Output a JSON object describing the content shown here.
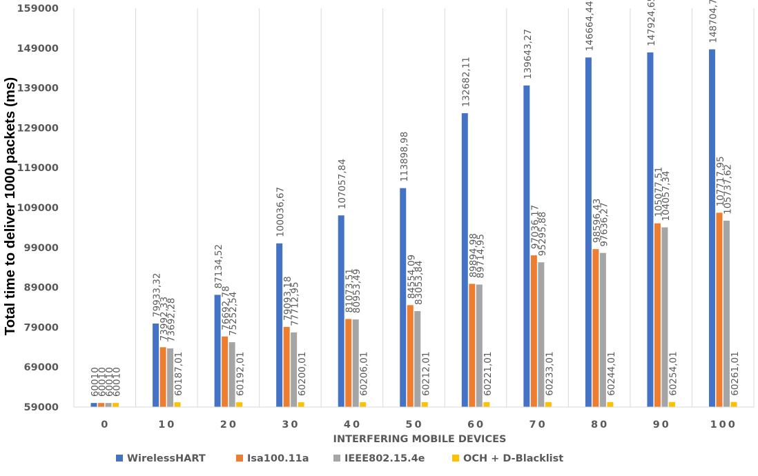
{
  "chart_data": {
    "type": "bar",
    "title": "",
    "xlabel": "INTERFERING MOBILE DEVICES",
    "ylabel": "Total time to deliver 1000 packets (ms)",
    "ylim": [
      59000,
      159000
    ],
    "yticks": [
      "59000",
      "69000",
      "79000",
      "89000",
      "99000",
      "109000",
      "119000",
      "129000",
      "139000",
      "149000",
      "159000"
    ],
    "grid": "vertical category separators",
    "legend_position": "bottom",
    "categories": [
      "0",
      "10",
      "20",
      "30",
      "40",
      "50",
      "60",
      "70",
      "80",
      "90",
      "100"
    ],
    "series": [
      {
        "name": "WirelessHART",
        "color": "#4472C4",
        "values": [
          60010,
          79933.32,
          87134.52,
          100036.67,
          107057.84,
          113898.98,
          132682.11,
          139643.27,
          146664.44,
          147924.65,
          148704.78
        ],
        "labels": [
          "60010",
          "79933,32",
          "87134,52",
          "100036,67",
          "107057,84",
          "113898,98",
          "132682,11",
          "139643,27",
          "146664,44",
          "147924,65",
          "148704,78"
        ]
      },
      {
        "name": "Isa100.11a",
        "color": "#ED7D31",
        "values": [
          60010,
          73992.33,
          76692.78,
          79093.18,
          81073.51,
          84554.09,
          89894.98,
          97036.17,
          98596.43,
          105077.51,
          107717.95
        ],
        "labels": [
          "60010",
          "73992,33",
          "76692,78",
          "79093,18",
          "81073,51",
          "84554,09",
          "89894,98",
          "97036,17",
          "98596,43",
          "105077,51",
          "107717,95"
        ]
      },
      {
        "name": "IEEE802.15.4e",
        "color": "#A5A5A5",
        "values": [
          60010,
          73692.28,
          75252.54,
          77712.95,
          80953.49,
          83053.84,
          89714.95,
          95295.88,
          97636.27,
          104057.34,
          105737.62
        ],
        "labels": [
          "60010",
          "73692,28",
          "75252,54",
          "77712,95",
          "80953,49",
          "83053,84",
          "89714,95",
          "95295,88",
          "97636,27",
          "104057,34",
          "105737,62"
        ]
      },
      {
        "name": "OCH + D-Blacklist",
        "color": "#FFC000",
        "values": [
          60010,
          60187.01,
          60192.01,
          60200.01,
          60206.01,
          60212.01,
          60221.01,
          60233.01,
          60244.01,
          60254.01,
          60261.01
        ],
        "labels": [
          "60010",
          "60187,01",
          "60192,01",
          "60200,01",
          "60206,01",
          "60212,01",
          "60221,01",
          "60233,01",
          "60244,01",
          "60254,01",
          "60261,01"
        ]
      }
    ]
  }
}
